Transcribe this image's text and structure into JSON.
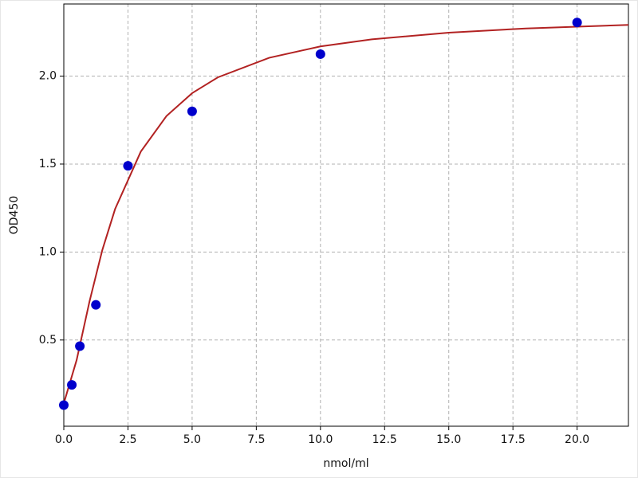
{
  "chart_data": {
    "type": "scatter",
    "xlabel": "nmol/ml",
    "ylabel": "OD450",
    "xlim": [
      0,
      22
    ],
    "ylim": [
      0.01,
      2.41
    ],
    "xticks": [
      {
        "value": 0,
        "label": "0.0"
      },
      2.5,
      {
        "value": 5,
        "label": "5.0"
      },
      7.5,
      {
        "value": 10,
        "label": "10.0"
      },
      12.5,
      {
        "value": 15,
        "label": "15.0"
      },
      17.5,
      {
        "value": 20,
        "label": "20.0"
      }
    ],
    "yticks": [
      0.5,
      {
        "value": 1,
        "label": "1.0"
      },
      1.5,
      {
        "value": 2,
        "label": "2.0"
      }
    ],
    "grid": true,
    "points": {
      "color": "#0000cc",
      "x": [
        0,
        0.3125,
        0.625,
        1.25,
        2.5,
        5,
        10,
        20
      ],
      "values": [
        0.13,
        0.245,
        0.465,
        0.7,
        1.49,
        1.8,
        2.125,
        2.305
      ]
    },
    "curve": {
      "color": "#b22222",
      "x": [
        0,
        0.5,
        1,
        1.5,
        2,
        3,
        4,
        5,
        6,
        8,
        10,
        12,
        15,
        18,
        22
      ],
      "values": [
        0.14,
        0.386,
        0.718,
        1.011,
        1.245,
        1.571,
        1.773,
        1.903,
        1.993,
        2.104,
        2.169,
        2.209,
        2.247,
        2.271,
        2.291
      ]
    }
  }
}
